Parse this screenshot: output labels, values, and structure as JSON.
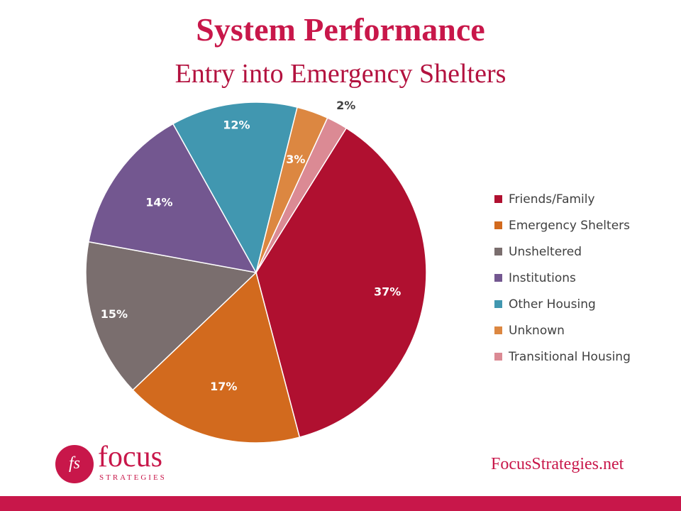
{
  "header": {
    "title": "System Performance",
    "subtitle": "Entry into Emergency Shelters"
  },
  "chart_data": {
    "type": "pie",
    "categories": [
      "Friends/Family",
      "Emergency Shelters",
      "Unsheltered",
      "Institutions",
      "Other Housing",
      "Unknown",
      "Transitional Housing"
    ],
    "values": [
      37,
      17,
      15,
      14,
      12,
      3,
      2
    ],
    "labels": [
      "37%",
      "17%",
      "15%",
      "14%",
      "12%",
      "3%",
      "2%"
    ],
    "colors": [
      "#b01030",
      "#d26a1e",
      "#7a6e6e",
      "#735790",
      "#4197b0",
      "#dc8741",
      "#db8a94"
    ],
    "label_colors": [
      "#ffffff",
      "#ffffff",
      "#ffffff",
      "#ffffff",
      "#ffffff",
      "#ffffff",
      "#404040"
    ],
    "title": "System Performance",
    "subtitle": "Entry into Emergency Shelters",
    "legend_position": "right"
  },
  "logo": {
    "monogram": "fs",
    "word": "focus",
    "sub": "STRATEGIES"
  },
  "footer": {
    "website": "FocusStrategies.net"
  }
}
